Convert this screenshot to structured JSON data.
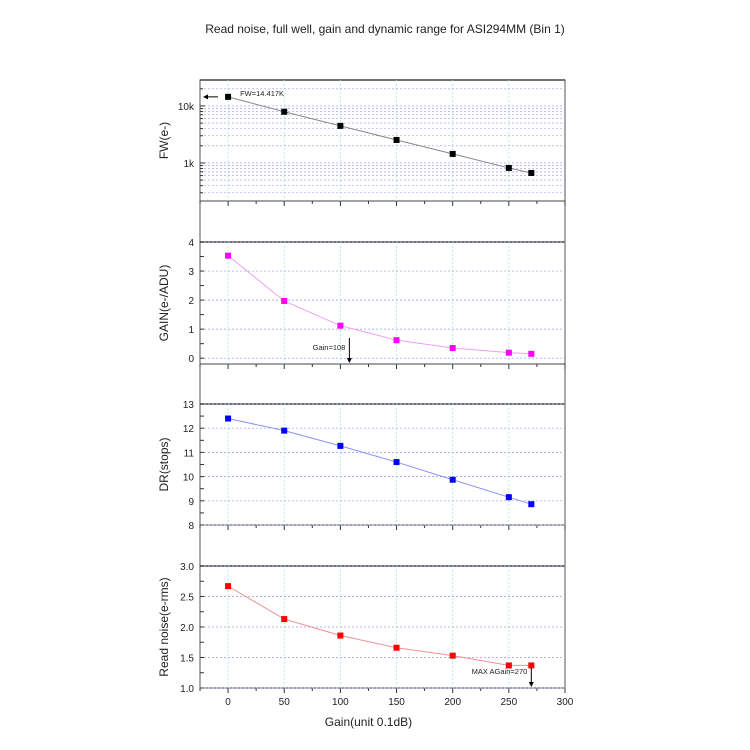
{
  "chart_data": {
    "type": "line",
    "title": "Read noise, full well, gain and dynamic range for ASI294MM (Bin 1)",
    "xlabel": "Gain(unit 0.1dB)",
    "xlim": [
      -25,
      300
    ],
    "x_ticks": [
      "0",
      "50",
      "100",
      "150",
      "200",
      "250",
      "300"
    ],
    "x": [
      0,
      50,
      100,
      150,
      200,
      250,
      270
    ],
    "grid": true,
    "panels": [
      {
        "name": "fw",
        "ylabel": "FW(e-)",
        "scale": "log",
        "ylim": [
          215,
          28500
        ],
        "y_ticks": [
          {
            "v": 1000,
            "label": "1k"
          },
          {
            "v": 10000,
            "label": "10k"
          }
        ],
        "color": "#000000",
        "line_color": "#888888",
        "values": [
          14417,
          7900,
          4470,
          2530,
          1440,
          817,
          667
        ],
        "annotation": {
          "text": "FW=14.417K",
          "x": 0,
          "y": 14417
        }
      },
      {
        "name": "gain",
        "ylabel": "GAIN(e-/ADU)",
        "scale": "linear",
        "ylim": [
          -0.2,
          4
        ],
        "y_ticks": [
          {
            "v": 0,
            "label": "0"
          },
          {
            "v": 1,
            "label": "1"
          },
          {
            "v": 2,
            "label": "2"
          },
          {
            "v": 3,
            "label": "3"
          },
          {
            "v": 4,
            "label": "4"
          }
        ],
        "color": "#ff00ff",
        "line_color": "#f0a0f0",
        "values": [
          3.53,
          1.97,
          1.12,
          0.62,
          0.35,
          0.19,
          0.15
        ],
        "annotation": {
          "text": "Gain=108",
          "x": 108
        }
      },
      {
        "name": "dr",
        "ylabel": "DR(stops)",
        "scale": "linear",
        "ylim": [
          8,
          13
        ],
        "y_ticks": [
          {
            "v": 8,
            "label": "8"
          },
          {
            "v": 9,
            "label": "9"
          },
          {
            "v": 10,
            "label": "10"
          },
          {
            "v": 11,
            "label": "11"
          },
          {
            "v": 12,
            "label": "12"
          },
          {
            "v": 13,
            "label": "13"
          }
        ],
        "color": "#0000ff",
        "line_color": "#9090f0",
        "values": [
          12.4,
          11.9,
          11.27,
          10.6,
          9.87,
          9.15,
          8.86
        ]
      },
      {
        "name": "read-noise",
        "ylabel": "Read noise(e-rms)",
        "scale": "linear",
        "ylim": [
          1.0,
          3.0
        ],
        "y_ticks": [
          {
            "v": 1.0,
            "label": "1.0"
          },
          {
            "v": 1.5,
            "label": "1.5"
          },
          {
            "v": 2.0,
            "label": "2.0"
          },
          {
            "v": 2.5,
            "label": "2.5"
          },
          {
            "v": 3.0,
            "label": "3.0"
          }
        ],
        "color": "#ff0000",
        "line_color": "#f09090",
        "values": [
          2.67,
          2.13,
          1.86,
          1.66,
          1.53,
          1.37,
          1.37
        ],
        "annotation": {
          "text": "MAX AGain=270",
          "x": 270
        }
      }
    ]
  }
}
